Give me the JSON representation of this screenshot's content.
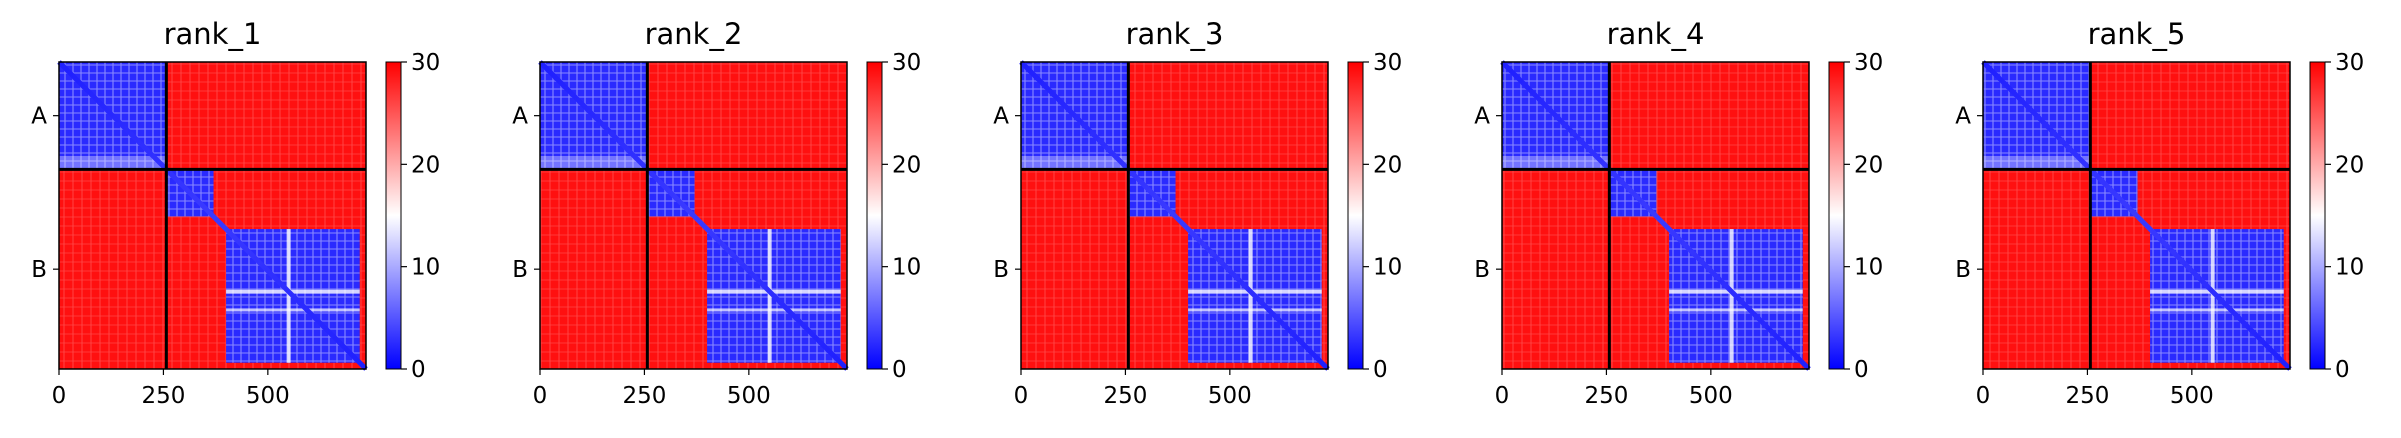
{
  "chart_data": [
    {
      "type": "heatmap",
      "title": "rank_1",
      "x_ticks": [
        "0",
        "250",
        "500"
      ],
      "x_tick_values": [
        0,
        250,
        500
      ],
      "y_tick_labels": [
        "A",
        "B"
      ],
      "chains": [
        {
          "name": "A",
          "start": 0,
          "end": 257
        },
        {
          "name": "B",
          "start": 257,
          "end": 735
        }
      ],
      "extent": [
        0,
        735
      ],
      "colorbar": {
        "min": 0,
        "max": 30,
        "ticks": [
          "0",
          "10",
          "20",
          "30"
        ],
        "colors": [
          "#0000ff",
          "#ffffff",
          "#ff0000"
        ]
      },
      "blue_blocks": [
        [
          257,
          370
        ],
        [
          370,
          735
        ]
      ]
    },
    {
      "type": "heatmap",
      "title": "rank_2",
      "x_ticks": [
        "0",
        "250",
        "500"
      ],
      "x_tick_values": [
        0,
        250,
        500
      ],
      "y_tick_labels": [
        "A",
        "B"
      ],
      "chains": [
        {
          "name": "A",
          "start": 0,
          "end": 257
        },
        {
          "name": "B",
          "start": 257,
          "end": 735
        }
      ],
      "extent": [
        0,
        735
      ],
      "colorbar": {
        "min": 0,
        "max": 30,
        "ticks": [
          "0",
          "10",
          "20",
          "30"
        ],
        "colors": [
          "#0000ff",
          "#ffffff",
          "#ff0000"
        ]
      },
      "blue_blocks": [
        [
          257,
          370
        ],
        [
          370,
          735
        ]
      ]
    },
    {
      "type": "heatmap",
      "title": "rank_3",
      "x_ticks": [
        "0",
        "250",
        "500"
      ],
      "x_tick_values": [
        0,
        250,
        500
      ],
      "y_tick_labels": [
        "A",
        "B"
      ],
      "chains": [
        {
          "name": "A",
          "start": 0,
          "end": 257
        },
        {
          "name": "B",
          "start": 257,
          "end": 735
        }
      ],
      "extent": [
        0,
        735
      ],
      "colorbar": {
        "min": 0,
        "max": 30,
        "ticks": [
          "0",
          "10",
          "20",
          "30"
        ],
        "colors": [
          "#0000ff",
          "#ffffff",
          "#ff0000"
        ]
      },
      "blue_blocks": [
        [
          257,
          370
        ],
        [
          370,
          735
        ]
      ]
    },
    {
      "type": "heatmap",
      "title": "rank_4",
      "x_ticks": [
        "0",
        "250",
        "500"
      ],
      "x_tick_values": [
        0,
        250,
        500
      ],
      "y_tick_labels": [
        "A",
        "B"
      ],
      "chains": [
        {
          "name": "A",
          "start": 0,
          "end": 257
        },
        {
          "name": "B",
          "start": 257,
          "end": 735
        }
      ],
      "extent": [
        0,
        735
      ],
      "colorbar": {
        "min": 0,
        "max": 30,
        "ticks": [
          "0",
          "10",
          "20",
          "30"
        ],
        "colors": [
          "#0000ff",
          "#ffffff",
          "#ff0000"
        ]
      },
      "blue_blocks": [
        [
          257,
          370
        ],
        [
          370,
          735
        ]
      ]
    },
    {
      "type": "heatmap",
      "title": "rank_5",
      "x_ticks": [
        "0",
        "250",
        "500"
      ],
      "x_tick_values": [
        0,
        250,
        500
      ],
      "y_tick_labels": [
        "A",
        "B"
      ],
      "chains": [
        {
          "name": "A",
          "start": 0,
          "end": 257
        },
        {
          "name": "B",
          "start": 257,
          "end": 735
        }
      ],
      "extent": [
        0,
        735
      ],
      "colorbar": {
        "min": 0,
        "max": 30,
        "ticks": [
          "0",
          "10",
          "20",
          "30"
        ],
        "colors": [
          "#0000ff",
          "#ffffff",
          "#ff0000"
        ]
      },
      "blue_blocks": [
        [
          257,
          370
        ],
        [
          370,
          735
        ]
      ]
    }
  ]
}
